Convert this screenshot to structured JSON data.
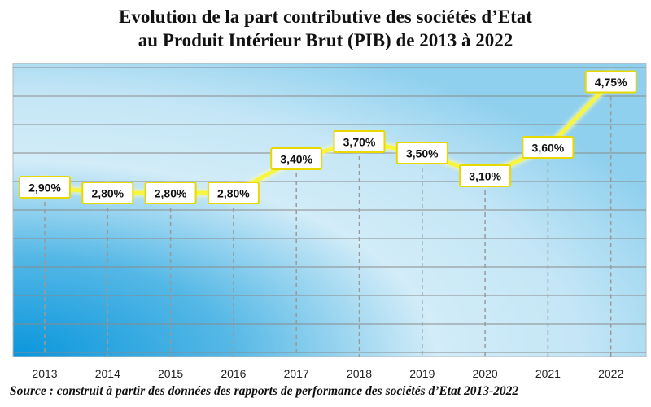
{
  "title_line1": "Evolution  de  la part contributive des sociétés  d’Etat",
  "title_line2": "au  Produit Intérieur Brut (PIB) de 2013 à 2022",
  "source": "Source : construit à partir des données des rapports de performance des sociétés d’Etat 2013-2022",
  "colors": {
    "line": "#f5f542",
    "marker_fill": "#ffffff",
    "marker_border": "#e8d800",
    "gridline": "#8a8a8a",
    "dashed": "#999999",
    "bg_dark": "#1aa3e0",
    "bg_light": "#e6f4fb"
  },
  "chart_data": {
    "type": "line",
    "title": "Evolution  de  la part contributive des sociétés  d’Etat au  Produit Intérieur Brut (PIB) de 2013 à 2022",
    "xlabel": "",
    "ylabel": "",
    "ylim": [
      0,
      5
    ],
    "grid": true,
    "legend": "none",
    "categories": [
      "2013",
      "2014",
      "2015",
      "2016",
      "2017",
      "2018",
      "2019",
      "2020",
      "2021",
      "2022"
    ],
    "values": [
      2.9,
      2.8,
      2.8,
      2.8,
      3.4,
      3.7,
      3.5,
      3.1,
      3.6,
      4.75
    ],
    "labels": [
      "2,90%",
      "2,80%",
      "2,80%",
      "2,80%",
      "3,40%",
      "3,70%",
      "3,50%",
      "3,10%",
      "3,60%",
      "4,75%"
    ]
  }
}
